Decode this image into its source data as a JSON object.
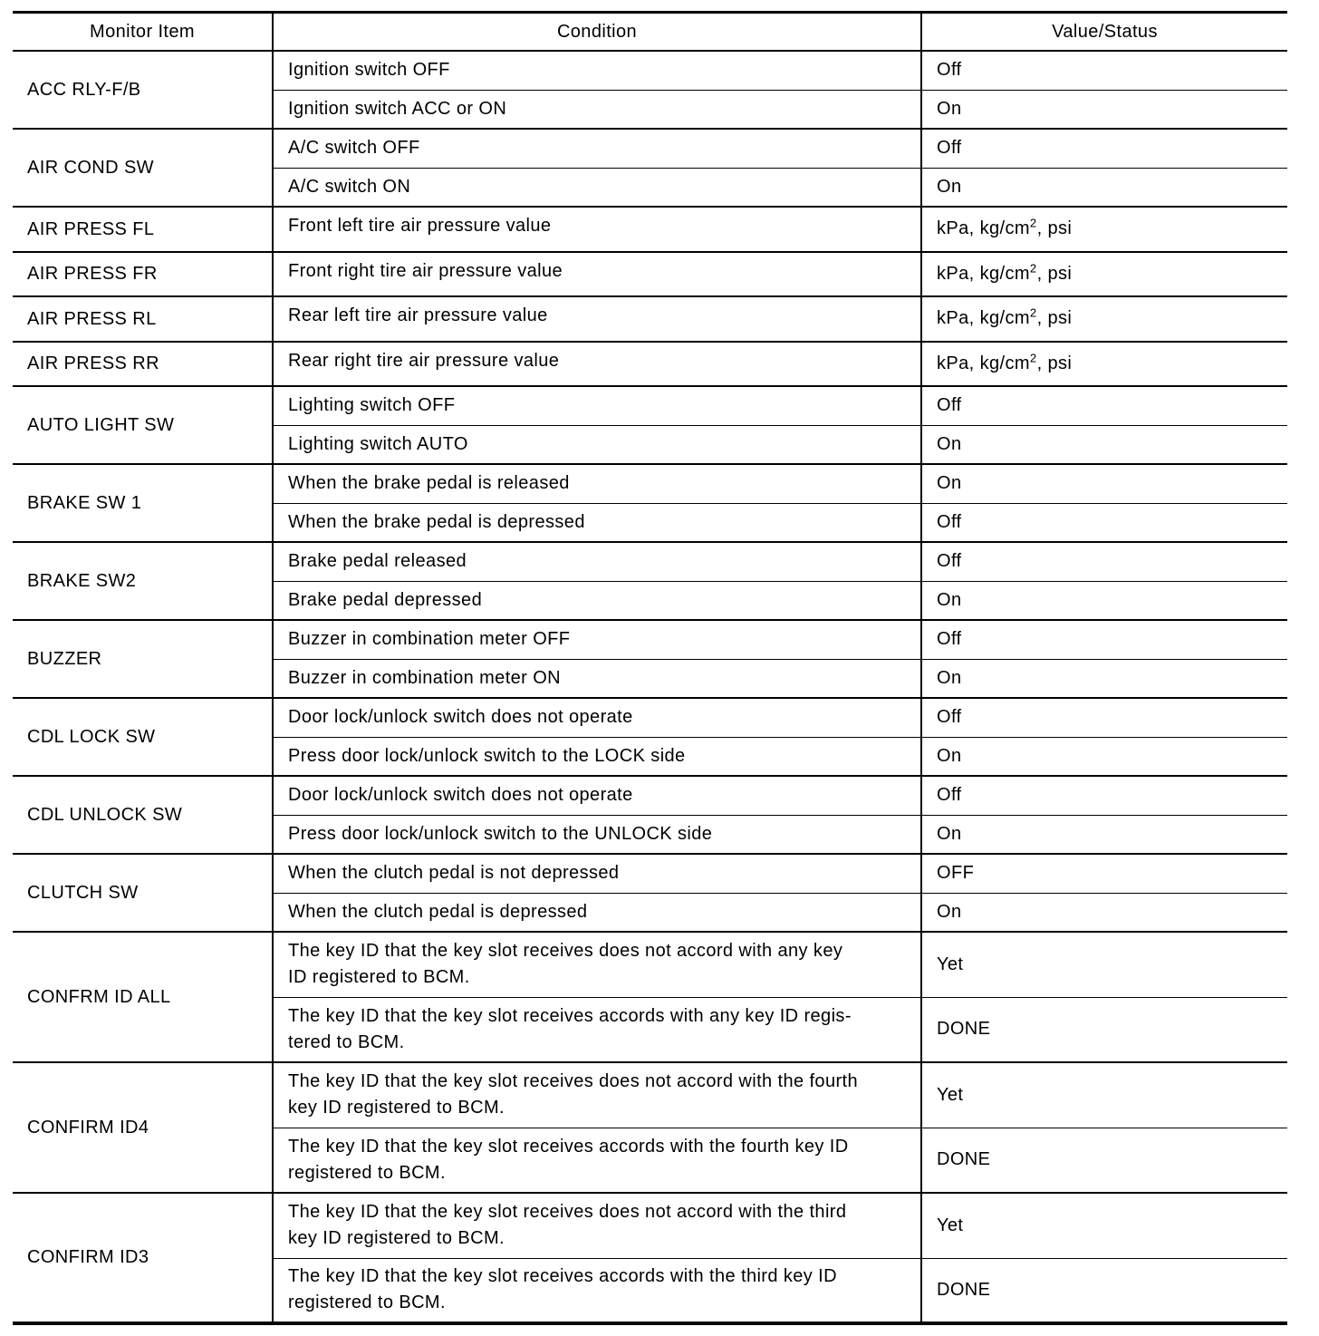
{
  "table": {
    "headers": [
      "Monitor Item",
      "Condition",
      "Value/Status"
    ],
    "groups": [
      {
        "item": "ACC RLY-F/B",
        "rows": [
          {
            "condition": "Ignition switch OFF",
            "value": "Off"
          },
          {
            "condition": "Ignition switch ACC or ON",
            "value": "On"
          }
        ]
      },
      {
        "item": "AIR COND SW",
        "rows": [
          {
            "condition": "A/C switch OFF",
            "value": "Off"
          },
          {
            "condition": "A/C switch ON",
            "value": "On"
          }
        ]
      },
      {
        "item": "AIR PRESS FL",
        "rows": [
          {
            "condition": "Front left tire air pressure value",
            "value": "kPa, kg/cm",
            "value_sup": "2",
            "value_suffix": ", psi"
          }
        ]
      },
      {
        "item": "AIR PRESS FR",
        "rows": [
          {
            "condition": "Front right tire air pressure value",
            "value": "kPa, kg/cm",
            "value_sup": "2",
            "value_suffix": ", psi"
          }
        ]
      },
      {
        "item": "AIR PRESS RL",
        "rows": [
          {
            "condition": "Rear left tire air pressure value",
            "value": "kPa, kg/cm",
            "value_sup": "2",
            "value_suffix": ", psi"
          }
        ]
      },
      {
        "item": "AIR PRESS RR",
        "rows": [
          {
            "condition": "Rear right tire air pressure value",
            "value": "kPa, kg/cm",
            "value_sup": "2",
            "value_suffix": ", psi"
          }
        ]
      },
      {
        "item": "AUTO LIGHT SW",
        "rows": [
          {
            "condition": "Lighting switch OFF",
            "value": "Off"
          },
          {
            "condition": "Lighting switch AUTO",
            "value": "On"
          }
        ]
      },
      {
        "item": "BRAKE SW 1",
        "rows": [
          {
            "condition": "When the brake pedal is released",
            "value": "On"
          },
          {
            "condition": "When the brake pedal is depressed",
            "value": "Off"
          }
        ]
      },
      {
        "item": "BRAKE SW2",
        "rows": [
          {
            "condition": "Brake pedal released",
            "value": "Off"
          },
          {
            "condition": "Brake pedal depressed",
            "value": "On"
          }
        ]
      },
      {
        "item": "BUZZER",
        "rows": [
          {
            "condition": "Buzzer in combination meter OFF",
            "value": "Off"
          },
          {
            "condition": "Buzzer in combination meter ON",
            "value": "On"
          }
        ]
      },
      {
        "item": "CDL LOCK SW",
        "rows": [
          {
            "condition": "Door lock/unlock switch does not operate",
            "value": "Off"
          },
          {
            "condition": "Press door lock/unlock switch to the LOCK side",
            "value": "On"
          }
        ]
      },
      {
        "item": "CDL UNLOCK SW",
        "rows": [
          {
            "condition": "Door lock/unlock switch does not operate",
            "value": "Off"
          },
          {
            "condition": "Press door lock/unlock switch to the UNLOCK side",
            "value": "On"
          }
        ]
      },
      {
        "item": "CLUTCH SW",
        "rows": [
          {
            "condition": "When the clutch pedal is not depressed",
            "value": "OFF"
          },
          {
            "condition": "When the clutch pedal is depressed",
            "value": "On"
          }
        ]
      },
      {
        "item": "CONFRM ID ALL",
        "rows": [
          {
            "condition": "The key ID that the key slot receives does not accord with any key\nID registered to BCM.",
            "value": "Yet"
          },
          {
            "condition": "The key ID that the key slot receives accords with any key ID regis-\ntered to BCM.",
            "value": "DONE"
          }
        ]
      },
      {
        "item": "CONFIRM ID4",
        "rows": [
          {
            "condition": "The key ID that the key slot receives does not accord with the fourth\nkey ID registered to BCM.",
            "value": "Yet"
          },
          {
            "condition": "The key ID that the key slot receives accords with the fourth key ID\nregistered to BCM.",
            "value": "DONE"
          }
        ]
      },
      {
        "item": "CONFIRM ID3",
        "rows": [
          {
            "condition": "The key ID that the key slot receives does not accord with the third\nkey ID registered to BCM.",
            "value": "Yet"
          },
          {
            "condition": "The key ID that the key slot receives accords with the third key ID\nregistered to BCM.",
            "value": "DONE"
          }
        ]
      }
    ]
  }
}
